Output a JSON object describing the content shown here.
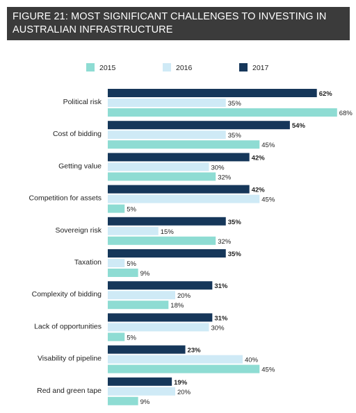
{
  "header": {
    "line1": "FIGURE 21: MOST SIGNIFICANT CHALLENGES TO INVESTING IN",
    "line2": "AUSTRALIAN INFRASTRUCTURE"
  },
  "colors": {
    "2015": "#8edcd3",
    "2016": "#cfeaf6",
    "2017": "#16375a",
    "header_bg": "#3b3b3b"
  },
  "chart_data": {
    "type": "bar",
    "orientation": "horizontal",
    "title": "FIGURE 21: MOST SIGNIFICANT CHALLENGES TO INVESTING IN AUSTRALIAN INFRASTRUCTURE",
    "categories": [
      "Political risk",
      "Cost of bidding",
      "Getting value",
      "Competition for assets",
      "Sovereign risk",
      "Taxation",
      "Complexity of bidding",
      "Lack of opportunities",
      "Visability of pipeline",
      "Red and green tape"
    ],
    "series": [
      {
        "name": "2017",
        "values": [
          62,
          54,
          42,
          42,
          35,
          35,
          31,
          31,
          23,
          19
        ]
      },
      {
        "name": "2016",
        "values": [
          35,
          35,
          30,
          45,
          15,
          5,
          20,
          30,
          40,
          20
        ]
      },
      {
        "name": "2015",
        "values": [
          68,
          45,
          32,
          5,
          32,
          9,
          18,
          5,
          45,
          9
        ]
      }
    ],
    "value_suffix": "%",
    "xlim": [
      0,
      100
    ],
    "legend": {
      "placement": "top",
      "order": [
        "2015",
        "2016",
        "2017"
      ]
    },
    "grid": false
  }
}
